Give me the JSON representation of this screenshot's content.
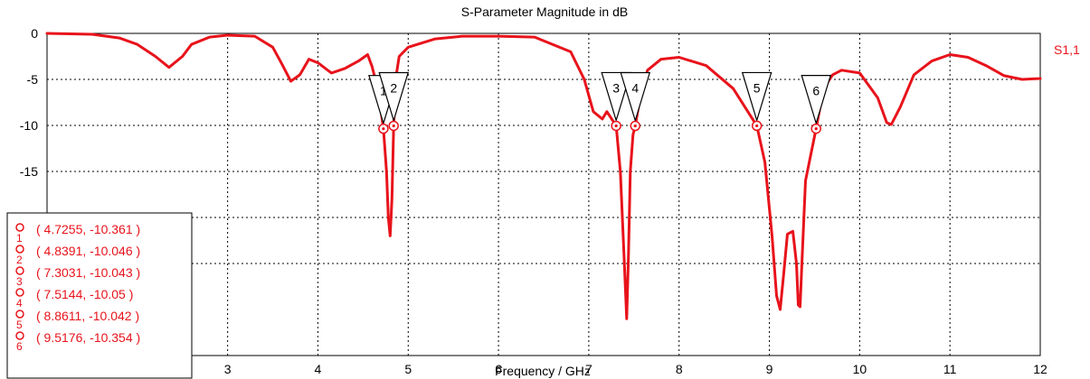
{
  "chart_data": {
    "type": "line",
    "title": "S-Parameter Magnitude in dB",
    "xlabel": "Frequency / GHz",
    "ylabel": "",
    "xlim": [
      1.0,
      12.0
    ],
    "ylim": [
      -35,
      0
    ],
    "x_ticks": [
      "3",
      "4",
      "5",
      "6",
      "7",
      "8",
      "9",
      "10",
      "11",
      "12"
    ],
    "y_ticks": [
      "0",
      "-5",
      "-10",
      "-15",
      "-20",
      "-25"
    ],
    "grid": true,
    "series": [
      {
        "name": "S1,1",
        "color": "#e8131b",
        "x": [
          1.0,
          1.5,
          1.8,
          2.0,
          2.2,
          2.35,
          2.5,
          2.6,
          2.8,
          3.0,
          3.3,
          3.5,
          3.6,
          3.7,
          3.8,
          3.9,
          4.0,
          4.15,
          4.3,
          4.45,
          4.55,
          4.6,
          4.65,
          4.7,
          4.7255,
          4.76,
          4.78,
          4.8,
          4.82,
          4.8391,
          4.86,
          4.9,
          5.0,
          5.3,
          5.6,
          6.0,
          6.4,
          6.8,
          6.95,
          7.05,
          7.15,
          7.2,
          7.3031,
          7.35,
          7.39,
          7.42,
          7.44,
          7.46,
          7.49,
          7.5144,
          7.55,
          7.65,
          7.8,
          8.0,
          8.3,
          8.6,
          8.8611,
          8.95,
          9.03,
          9.08,
          9.12,
          9.16,
          9.2,
          9.26,
          9.3,
          9.32,
          9.34,
          9.36,
          9.4,
          9.5176,
          9.6,
          9.7,
          9.8,
          10.0,
          10.2,
          10.3,
          10.35,
          10.45,
          10.6,
          10.8,
          11.0,
          11.2,
          11.4,
          11.6,
          11.8,
          12.0
        ],
        "y": [
          0.0,
          -0.1,
          -0.5,
          -1.2,
          -2.5,
          -3.7,
          -2.5,
          -1.2,
          -0.4,
          -0.2,
          -0.3,
          -1.5,
          -3.3,
          -5.2,
          -4.5,
          -2.8,
          -3.2,
          -4.3,
          -3.8,
          -3.0,
          -2.3,
          -3.6,
          -5.5,
          -8.5,
          -10.361,
          -15.0,
          -20.0,
          -22.0,
          -18.0,
          -10.046,
          -5.0,
          -2.5,
          -1.5,
          -0.6,
          -0.3,
          -0.3,
          -0.4,
          -2.0,
          -5.0,
          -8.5,
          -9.3,
          -8.5,
          -10.043,
          -15.0,
          -24.0,
          -31.0,
          -24.0,
          -15.0,
          -11.0,
          -10.05,
          -8.0,
          -4.0,
          -2.8,
          -2.6,
          -3.5,
          -6.0,
          -10.042,
          -14.0,
          -22.0,
          -28.5,
          -30.0,
          -26.0,
          -21.8,
          -21.5,
          -25.0,
          -29.5,
          -29.7,
          -25.0,
          -16.0,
          -10.354,
          -6.0,
          -4.5,
          -4.0,
          -4.3,
          -7.0,
          -9.7,
          -9.9,
          -8.0,
          -4.5,
          -3.0,
          -2.3,
          -2.6,
          -3.5,
          -4.6,
          -5.0,
          -4.9
        ]
      }
    ],
    "markers": [
      {
        "id": "1",
        "x": 4.7255,
        "y": -10.361,
        "label": "( 4.7255, -10.361 )"
      },
      {
        "id": "2",
        "x": 4.8391,
        "y": -10.046,
        "label": "( 4.8391, -10.046 )"
      },
      {
        "id": "3",
        "x": 7.3031,
        "y": -10.043,
        "label": "( 7.3031, -10.043 )"
      },
      {
        "id": "4",
        "x": 7.5144,
        "y": -10.05,
        "label": "( 7.5144, -10.05 )"
      },
      {
        "id": "5",
        "x": 8.8611,
        "y": -10.042,
        "label": "( 8.8611, -10.042 )"
      },
      {
        "id": "6",
        "x": 9.5176,
        "y": -10.354,
        "label": "( 9.5176, -10.354 )"
      }
    ],
    "legend_placement": "bottom-left"
  }
}
